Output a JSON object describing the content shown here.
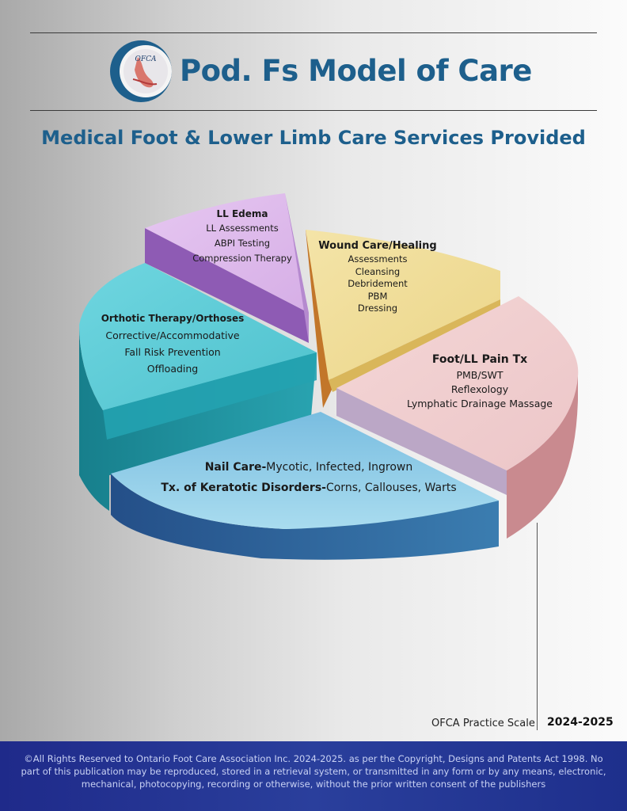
{
  "header": {
    "brand_title": "Pod. Fs Model of Care",
    "logo_text": "OFCA",
    "subtitle": "Medical Foot & Lower Limb Care Services Provided"
  },
  "segments": {
    "edema": {
      "title": "LL Edema",
      "items": [
        "LL Assessments",
        "ABPI Testing",
        "Compression Therapy"
      ],
      "color": "#dcb8ea"
    },
    "wound": {
      "title": "Wound Care/Healing",
      "items": [
        "Assessments",
        "Cleansing",
        "Debridement",
        "PBM",
        "Dressing"
      ],
      "color": "#f1df9c"
    },
    "pain": {
      "title": "Foot/LL Pain Tx",
      "items": [
        "PMB/SWT",
        "Reflexology",
        "Lymphatic Drainage Massage"
      ],
      "color": "#f0cfd0"
    },
    "orthotic": {
      "title": "Orthotic Therapy/Orthoses",
      "items": [
        "Corrective/Accommodative",
        "Fall Risk Prevention",
        "Offloading"
      ],
      "color": "#62ccd6"
    },
    "nail": {
      "line1_bold": "Nail Care-",
      "line1_rest": "Mycotic, Infected, Ingrown",
      "line2_bold": "Tx. of Keratotic Disorders-",
      "line2_rest": "Corns, Callouses, Warts",
      "color": "#8dcbe6"
    }
  },
  "practice_scale": {
    "label": "OFCA Practice Scale",
    "year": "2024-2025"
  },
  "footer": {
    "copyright": "©All Rights Reserved to Ontario Foot Care Association Inc. 2024-2025. as per the Copyright, Designs and Patents Act 1998. No part of this publication may be reproduced, stored in a retrieval system, or transmitted in any form or by any means, electronic, mechanical, photocopying, recording or otherwise, without the prior written consent of the publishers"
  }
}
